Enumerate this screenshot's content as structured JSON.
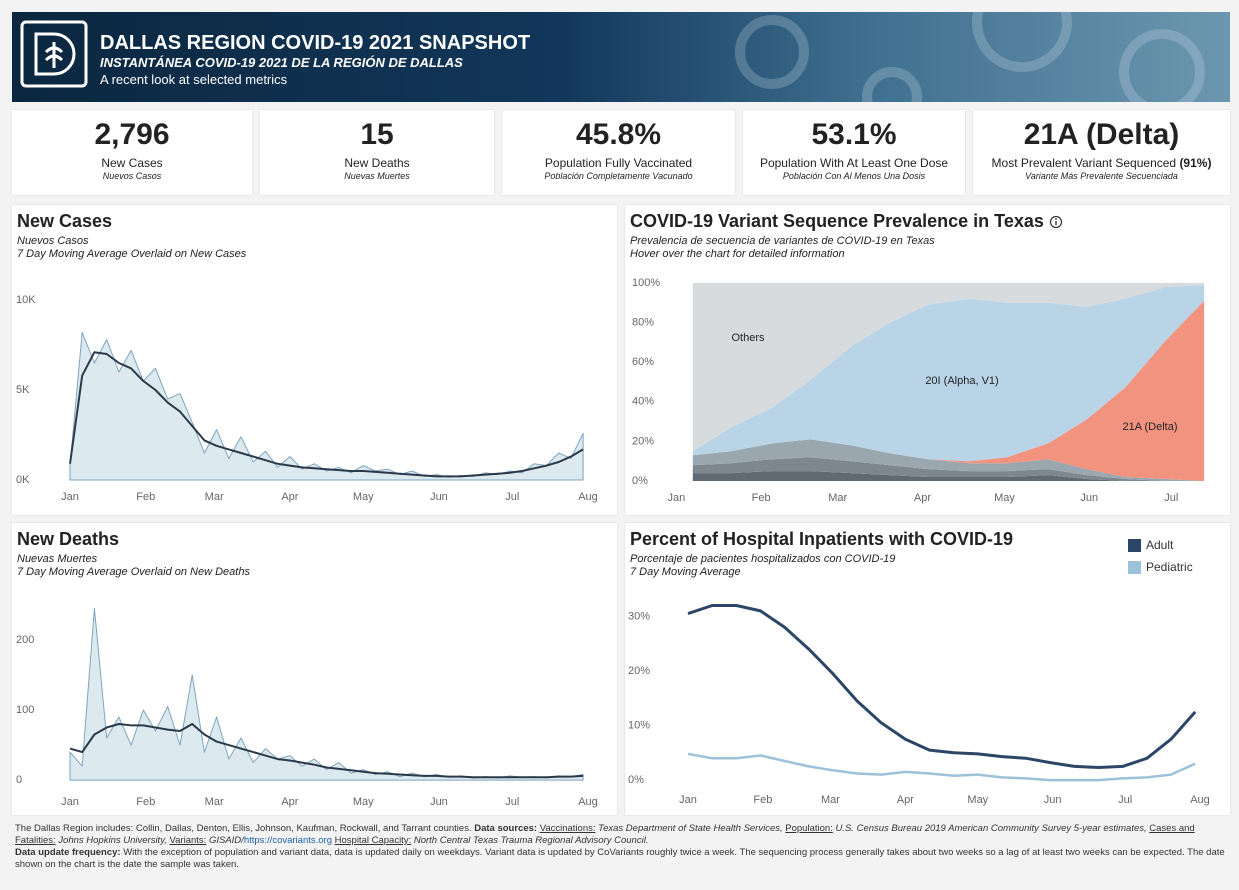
{
  "header": {
    "title": "DALLAS REGION COVID-19 2021 SNAPSHOT",
    "subtitle": "INSTANTÁNEA COVID-19 2021 DE LA REGIÓN DE DALLAS",
    "tagline": "A recent look at selected metrics"
  },
  "kpis": [
    {
      "value": "2,796",
      "label": "New Cases",
      "label_es": "Nuevos Casos"
    },
    {
      "value": "15",
      "label": "New Deaths",
      "label_es": "Nuevas Muertes"
    },
    {
      "value": "45.8%",
      "label": "Population Fully Vaccinated",
      "label_es": "Población Completamente Vacunado"
    },
    {
      "value": "53.1%",
      "label": "Population With At Least One Dose",
      "label_es": "Población Con Al Menos Una Dosis"
    },
    {
      "value": "21A (Delta)",
      "label": "Most Prevalent Variant Sequenced",
      "share": "(91%)",
      "label_es": "Variante Más Prevalente Secuenciada"
    }
  ],
  "chart_data": [
    {
      "type": "line",
      "title": "New Cases",
      "subtitle": "Nuevos Casos",
      "note": "7 Day Moving Average Overlaid on New Cases",
      "x": [
        0,
        5,
        10,
        15,
        20,
        25,
        30,
        35,
        40,
        45,
        50,
        55,
        60,
        65,
        70,
        75,
        80,
        85,
        90,
        95,
        100,
        105,
        110,
        115,
        120,
        125,
        130,
        135,
        140,
        145,
        150,
        155,
        160,
        165,
        170,
        175,
        180,
        185,
        190,
        195,
        200,
        205,
        210
      ],
      "xlim": [
        0,
        212
      ],
      "xticks": [
        {
          "value": 0,
          "label": "Jan"
        },
        {
          "value": 31,
          "label": "Feb"
        },
        {
          "value": 59,
          "label": "Mar"
        },
        {
          "value": 90,
          "label": "Apr"
        },
        {
          "value": 120,
          "label": "May"
        },
        {
          "value": 151,
          "label": "Jun"
        },
        {
          "value": 181,
          "label": "Jul"
        },
        {
          "value": 212,
          "label": "Aug"
        }
      ],
      "ylim": [
        0,
        11000
      ],
      "yticks": [
        {
          "value": 0,
          "label": "0K"
        },
        {
          "value": 5000,
          "label": "5K"
        },
        {
          "value": 10000,
          "label": "10K"
        }
      ],
      "series": [
        {
          "style": "area",
          "color": "#7ea4c1",
          "fill": "#dce9ee",
          "width": 1,
          "values": [
            800,
            8200,
            6500,
            7800,
            6000,
            7200,
            5500,
            6200,
            4500,
            4800,
            3200,
            1500,
            2800,
            1200,
            2400,
            1000,
            1600,
            700,
            1300,
            600,
            900,
            500,
            700,
            400,
            800,
            500,
            600,
            300,
            500,
            200,
            300,
            150,
            250,
            200,
            400,
            300,
            500,
            400,
            900,
            800,
            1500,
            1200,
            2600
          ]
        },
        {
          "style": "line",
          "color": "#2b3a4a",
          "width": 2,
          "values": [
            900,
            5800,
            7100,
            7000,
            6500,
            6200,
            5500,
            5000,
            4300,
            3800,
            3000,
            2200,
            1900,
            1700,
            1500,
            1300,
            1100,
            900,
            800,
            700,
            650,
            600,
            550,
            500,
            500,
            450,
            400,
            350,
            300,
            250,
            200,
            200,
            200,
            250,
            300,
            350,
            400,
            500,
            650,
            800,
            1000,
            1300,
            1700
          ]
        }
      ]
    },
    {
      "type": "stacked-area",
      "title": "COVID-19 Variant Sequence Prevalence in Texas",
      "subtitle": "Prevalencia de secuencia de variantes de COVID-19 en Texas",
      "note": "Hover over the chart for detailed information",
      "x": [
        6,
        20,
        35,
        49,
        64,
        78,
        92,
        107,
        121,
        136,
        150,
        164,
        179,
        193
      ],
      "xlim": [
        -6,
        197
      ],
      "xticks": [
        {
          "value": 0,
          "label": "Jan"
        },
        {
          "value": 31,
          "label": "Feb"
        },
        {
          "value": 59,
          "label": "Mar"
        },
        {
          "value": 90,
          "label": "Apr"
        },
        {
          "value": 120,
          "label": "May"
        },
        {
          "value": 151,
          "label": "Jun"
        },
        {
          "value": 181,
          "label": "Jul"
        }
      ],
      "ylim": [
        0,
        100
      ],
      "yticks": [
        {
          "value": 0,
          "label": "0%"
        },
        {
          "value": 20,
          "label": "20%"
        },
        {
          "value": 40,
          "label": "40%"
        },
        {
          "value": 60,
          "label": "60%"
        },
        {
          "value": 80,
          "label": "80%"
        },
        {
          "value": 100,
          "label": "100%"
        }
      ],
      "series": [
        {
          "color": "#5f6a73",
          "values": [
            4,
            4,
            5,
            5,
            4,
            3,
            2,
            2,
            2,
            3,
            1,
            0,
            0,
            0
          ]
        },
        {
          "color": "#7c878f",
          "values": [
            4,
            5,
            6,
            7,
            6,
            5,
            4,
            3,
            3,
            3,
            2,
            1,
            0,
            0
          ]
        },
        {
          "color": "#9ba7ae",
          "values": [
            5,
            6,
            8,
            9,
            8,
            6,
            5,
            4,
            4,
            5,
            3,
            1,
            1,
            0
          ]
        },
        {
          "name": "21A (Delta)",
          "color": "#f2937f",
          "values": [
            0,
            0,
            0,
            0,
            0,
            0,
            0,
            1,
            3,
            8,
            25,
            45,
            70,
            91
          ]
        },
        {
          "name": "20I (Alpha, V1)",
          "color": "#b8d4e6",
          "values": [
            2,
            12,
            18,
            30,
            50,
            66,
            78,
            82,
            78,
            71,
            57,
            45,
            27,
            8
          ]
        },
        {
          "name": "Others",
          "color": "#d8dbde",
          "values": [
            85,
            73,
            63,
            49,
            32,
            20,
            11,
            8,
            10,
            10,
            12,
            8,
            2,
            1
          ]
        }
      ]
    },
    {
      "type": "line",
      "title": "New Deaths",
      "subtitle": "Nuevas Muertes",
      "note": "7 Day Moving Average Overlaid on New Deaths",
      "x": [
        0,
        5,
        10,
        15,
        20,
        25,
        30,
        35,
        40,
        45,
        50,
        55,
        60,
        65,
        70,
        75,
        80,
        85,
        90,
        95,
        100,
        105,
        110,
        115,
        120,
        125,
        130,
        135,
        140,
        145,
        150,
        155,
        160,
        165,
        170,
        175,
        180,
        185,
        190,
        195,
        200,
        205,
        210
      ],
      "xlim": [
        0,
        212
      ],
      "xticks": [
        {
          "value": 0,
          "label": "Jan"
        },
        {
          "value": 31,
          "label": "Feb"
        },
        {
          "value": 59,
          "label": "Mar"
        },
        {
          "value": 90,
          "label": "Apr"
        },
        {
          "value": 120,
          "label": "May"
        },
        {
          "value": 151,
          "label": "Jun"
        },
        {
          "value": 181,
          "label": "Jul"
        },
        {
          "value": 212,
          "label": "Aug"
        }
      ],
      "ylim": [
        -7,
        257
      ],
      "yticks": [
        0,
        100,
        200
      ],
      "series": [
        {
          "style": "area",
          "color": "#7ea4c1",
          "fill": "#dce9ee",
          "width": 1,
          "values": [
            40,
            20,
            245,
            60,
            90,
            50,
            100,
            70,
            105,
            50,
            150,
            40,
            90,
            30,
            60,
            25,
            45,
            30,
            35,
            20,
            30,
            15,
            25,
            10,
            15,
            8,
            12,
            5,
            10,
            5,
            8,
            4,
            6,
            3,
            5,
            3,
            6,
            4,
            5,
            3,
            6,
            5,
            8
          ]
        },
        {
          "style": "line",
          "color": "#2b3a4a",
          "width": 2,
          "values": [
            45,
            40,
            65,
            75,
            80,
            78,
            78,
            75,
            72,
            70,
            80,
            65,
            55,
            50,
            45,
            40,
            35,
            30,
            28,
            25,
            22,
            18,
            16,
            14,
            12,
            10,
            9,
            8,
            7,
            6,
            6,
            5,
            5,
            4,
            4,
            4,
            4,
            4,
            4,
            4,
            5,
            5,
            6
          ]
        }
      ]
    },
    {
      "type": "line",
      "title": "Percent of Hospital Inpatients with COVID-19",
      "subtitle": "Porcentaje de pacientes hospitalizados con COVID-19",
      "note": "7 Day Moving Average",
      "legend": "top-right",
      "x": [
        0,
        10,
        20,
        30,
        40,
        50,
        60,
        70,
        80,
        90,
        100,
        110,
        120,
        130,
        140,
        150,
        160,
        170,
        180,
        190,
        200,
        210
      ],
      "xlim": [
        0,
        212
      ],
      "xticks": [
        {
          "value": 0,
          "label": "Jan"
        },
        {
          "value": 31,
          "label": "Feb"
        },
        {
          "value": 59,
          "label": "Mar"
        },
        {
          "value": 90,
          "label": "Apr"
        },
        {
          "value": 120,
          "label": "May"
        },
        {
          "value": 151,
          "label": "Jun"
        },
        {
          "value": 181,
          "label": "Jul"
        },
        {
          "value": 212,
          "label": "Aug"
        }
      ],
      "ylim": [
        -2,
        33
      ],
      "yticks": [
        {
          "value": 0,
          "label": "0%"
        },
        {
          "value": 10,
          "label": "10%"
        },
        {
          "value": 20,
          "label": "20%"
        },
        {
          "value": 30,
          "label": "30%"
        }
      ],
      "series": [
        {
          "name": "Adult",
          "style": "line",
          "color": "#2c4668",
          "width": 3,
          "values": [
            30.5,
            32,
            32,
            31,
            28,
            24,
            19.5,
            14.5,
            10.5,
            7.5,
            5.5,
            5,
            4.8,
            4.3,
            4,
            3.2,
            2.5,
            2.3,
            2.5,
            4,
            7.5,
            12.5
          ]
        },
        {
          "name": "Pediatric",
          "style": "line",
          "color": "#9cc2da",
          "width": 2.5,
          "values": [
            4.8,
            4,
            4,
            4.5,
            3.5,
            2.5,
            1.8,
            1.2,
            1,
            1.5,
            1.2,
            0.8,
            1,
            0.5,
            0.3,
            0,
            0,
            0,
            0.3,
            0.5,
            1,
            3
          ]
        }
      ]
    }
  ],
  "footer": {
    "regions": "The Dallas Region includes: Collin, Dallas, Denton, Ellis, Johnson, Kaufman, Rockwall, and Tarrant counties.",
    "sources_label": "Data sources:",
    "sources": [
      {
        "label": "Vaccinations:",
        "text": "Texas Department of State Health Services,"
      },
      {
        "label": "Population:",
        "text": "U.S. Census Bureau 2019 American Community Survey 5-year estimates,"
      },
      {
        "label": "Cases and Fatalities:",
        "text": "Johns Hopkins University,"
      },
      {
        "label": "Variants:",
        "text": "GISAID/",
        "link": "https://covariants.org"
      },
      {
        "label": "Hospital Capacity:",
        "text": "North Central Texas Trauma Regional Advisory Council."
      }
    ],
    "update_label": "Data update frequency:",
    "update_text": "With the exception of population and variant data, data is updated daily on weekdays. Variant data is updated by CoVariants roughly twice a week. The sequencing process generally takes about two weeks so a lag of at least two weeks can be expected. The date shown on the chart is the date the sample was taken."
  }
}
